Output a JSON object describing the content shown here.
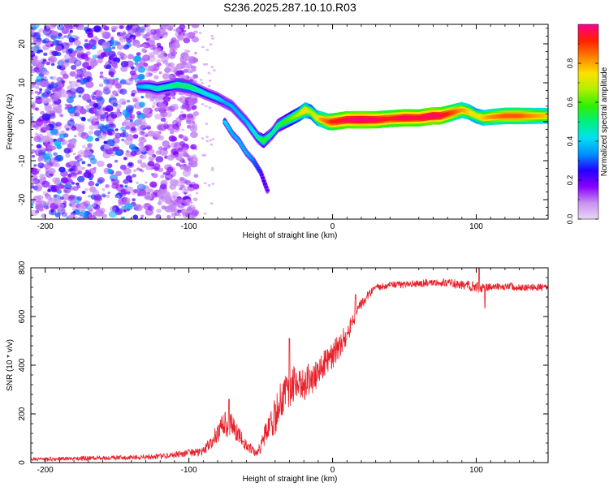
{
  "figure_title": "S236.2025.287.10.10.R03",
  "chart_data": [
    {
      "type": "heatmap",
      "title": "S236.2025.287.10.10.R03",
      "xlabel": "Height of straight line (km)",
      "ylabel": "Frequency (Hz)",
      "xlim": [
        -210,
        150
      ],
      "ylim": [
        -25,
        25
      ],
      "xticks": [
        -200,
        -100,
        0,
        100
      ],
      "xtick_labels": [
        "-200",
        "-100",
        "0",
        "100"
      ],
      "yticks": [
        -20,
        -10,
        0,
        10,
        20
      ],
      "ytick_labels": [
        "-20",
        "-10",
        "0",
        "10",
        "20"
      ],
      "colorbar": {
        "label": "Normalized spectral amplitude",
        "range": [
          0,
          1
        ],
        "ticks": [
          0.0,
          0.2,
          0.4,
          0.6,
          0.8
        ],
        "tick_labels": [
          "0.0",
          "0.2",
          "0.4",
          "0.6",
          "0.8"
        ],
        "colors": [
          "#e8d8f6",
          "#c890f0",
          "#8800ff",
          "#2400ff",
          "#0090ff",
          "#00e0f0",
          "#00f080",
          "#30f000",
          "#b0f000",
          "#ffe000",
          "#ff8000",
          "#ff2000",
          "#ff0090"
        ]
      },
      "noise_region_x": [
        -210,
        -95
      ],
      "ridge_main": {
        "x": [
          -135,
          -128,
          -122,
          -115,
          -108,
          -100,
          -93,
          -87,
          -80,
          -75,
          -70,
          -65,
          -60,
          -56,
          -52,
          -48,
          -45,
          -42,
          -38,
          -33,
          -28,
          -23,
          -19,
          -15,
          -11,
          -7,
          -3,
          0,
          10,
          20,
          30,
          40,
          50,
          60,
          70,
          75,
          80,
          85,
          90,
          95,
          100,
          105,
          110,
          120,
          130,
          140,
          150
        ],
        "y": [
          9,
          9,
          8.5,
          9,
          9.5,
          9,
          8,
          7,
          6,
          5,
          4,
          2,
          0,
          -2,
          -4,
          -5,
          -4,
          -3,
          -1,
          0,
          1,
          2,
          3,
          2.5,
          1,
          0.5,
          0,
          0,
          0.5,
          0.5,
          0.5,
          0.8,
          1,
          1,
          1.5,
          1.5,
          2,
          2.5,
          3,
          2.5,
          1.5,
          1,
          1.2,
          1.5,
          1.5,
          1.5,
          1.5
        ],
        "amp": [
          0.3,
          0.35,
          0.4,
          0.4,
          0.45,
          0.45,
          0.4,
          0.35,
          0.35,
          0.3,
          0.3,
          0.3,
          0.3,
          0.35,
          0.4,
          0.5,
          0.45,
          0.4,
          0.45,
          0.5,
          0.55,
          0.6,
          0.7,
          0.6,
          0.65,
          0.75,
          0.8,
          0.85,
          0.9,
          0.92,
          0.9,
          0.85,
          0.9,
          0.88,
          0.92,
          0.9,
          0.85,
          0.8,
          0.75,
          0.7,
          0.65,
          0.7,
          0.75,
          0.8,
          0.8,
          0.75,
          0.7
        ]
      },
      "ridge_branch": {
        "x": [
          -75,
          -70,
          -65,
          -60,
          -55,
          -50,
          -45
        ],
        "y": [
          0,
          -3,
          -5,
          -8,
          -10,
          -13,
          -18
        ],
        "amp": [
          0.35,
          0.3,
          0.3,
          0.3,
          0.25,
          0.2,
          0.15
        ]
      }
    },
    {
      "type": "line",
      "title": "",
      "xlabel": "Height of straight line (km)",
      "ylabel": "SNR (10 * v/v)",
      "xlim": [
        -210,
        150
      ],
      "ylim": [
        0,
        800
      ],
      "xticks": [
        -200,
        -100,
        0,
        100
      ],
      "xtick_labels": [
        "-200",
        "-100",
        "0",
        "100"
      ],
      "yticks": [
        0,
        200,
        400,
        600,
        800
      ],
      "ytick_labels": [
        "0",
        "200",
        "400",
        "600",
        "800"
      ],
      "series": [
        {
          "name": "SNR",
          "color": "#e8202a",
          "x": [
            -210,
            -190,
            -170,
            -150,
            -130,
            -115,
            -100,
            -90,
            -85,
            -80,
            -75,
            -70,
            -65,
            -60,
            -55,
            -50,
            -45,
            -40,
            -35,
            -30,
            -25,
            -20,
            -15,
            -10,
            -5,
            0,
            5,
            10,
            15,
            20,
            25,
            30,
            40,
            50,
            60,
            70,
            80,
            90,
            100,
            110,
            120,
            130,
            140,
            150
          ],
          "y": [
            15,
            15,
            18,
            20,
            22,
            28,
            40,
            45,
            80,
            120,
            160,
            150,
            110,
            70,
            45,
            60,
            150,
            190,
            270,
            310,
            320,
            330,
            340,
            380,
            410,
            440,
            480,
            530,
            600,
            650,
            690,
            720,
            730,
            730,
            735,
            740,
            740,
            730,
            720,
            720,
            725,
            720,
            720,
            720
          ],
          "noise": [
            8,
            8,
            9,
            9,
            10,
            12,
            15,
            18,
            30,
            45,
            55,
            50,
            35,
            25,
            20,
            30,
            60,
            75,
            85,
            85,
            80,
            75,
            70,
            65,
            60,
            55,
            50,
            45,
            35,
            25,
            18,
            15,
            15,
            15,
            15,
            15,
            18,
            20,
            25,
            18,
            15,
            15,
            15,
            15
          ],
          "spikes": [
            {
              "x": 102,
              "y": 800
            },
            {
              "x": 106,
              "y": 635
            },
            {
              "x": -72,
              "y": 260
            },
            {
              "x": -30,
              "y": 510
            },
            {
              "x": 16,
              "y": 690
            }
          ]
        }
      ]
    }
  ]
}
